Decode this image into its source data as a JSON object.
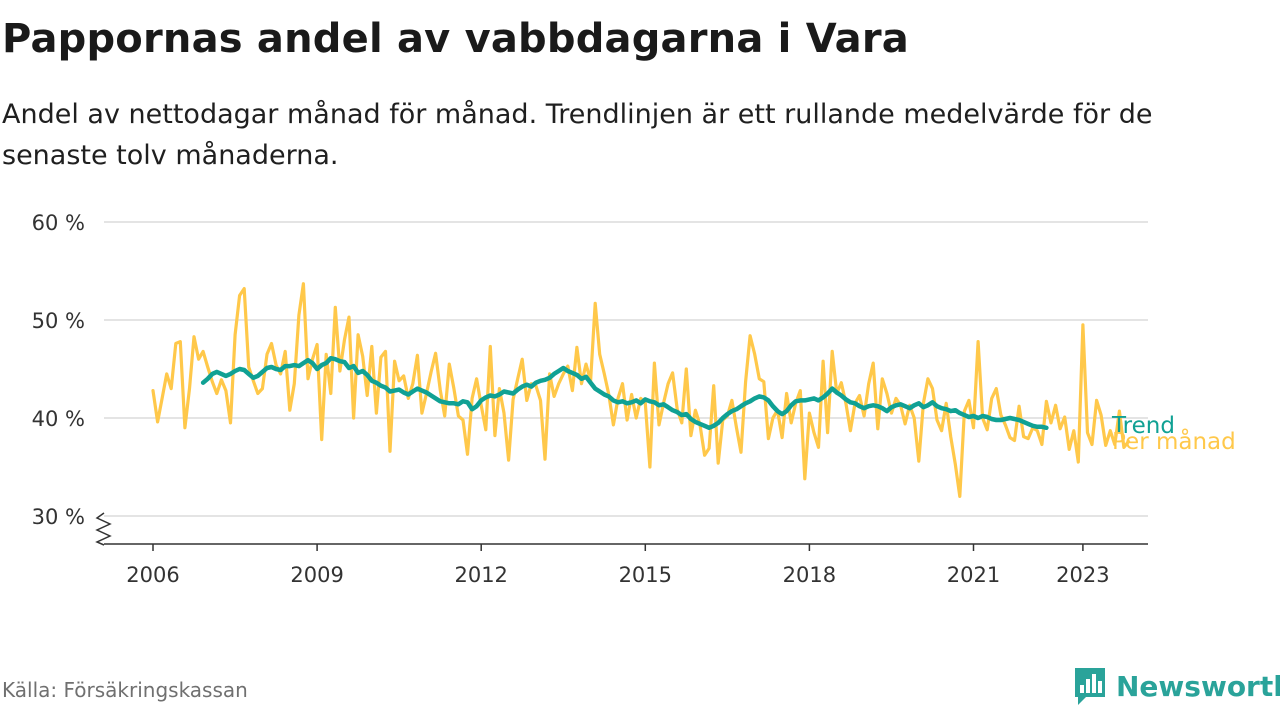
{
  "title": "Pappornas andel av vabbdagarna i Vara",
  "subtitle": "Andel av nettodagar månad för månad. Trendlinjen är ett rullande medelvärde för de senaste tolv månaderna.",
  "source": "Källa: Försäkringskassan",
  "brand": "Newsworthy",
  "chart_data": {
    "type": "line",
    "y_unit": "%",
    "ylim": [
      30,
      60
    ],
    "yticks": [
      30,
      40,
      50,
      60
    ],
    "ytick_labels": [
      "30 %",
      "40 %",
      "50 %",
      "60 %"
    ],
    "xticks": [
      2006,
      2009,
      2012,
      2015,
      2018,
      2021,
      2023
    ],
    "grid": true,
    "legend": "inline-right",
    "colors": {
      "monthly": "#ffc84a",
      "trend": "#10a194",
      "grid": "#dcdcdc",
      "axis": "#333333"
    },
    "monthly_start": "2006-01",
    "trend_start": "2006-12",
    "series": [
      {
        "name": "Per månad",
        "values": [
          42.8,
          39.6,
          42.0,
          44.5,
          43.0,
          47.6,
          47.8,
          39.0,
          43.0,
          48.3,
          46.0,
          46.8,
          45.2,
          43.7,
          42.5,
          43.9,
          42.8,
          39.5,
          48.5,
          52.5,
          53.2,
          45.2,
          43.8,
          42.5,
          43.0,
          46.5,
          47.6,
          45.4,
          44.5,
          46.8,
          40.8,
          43.5,
          50.5,
          53.7,
          44.0,
          46.0,
          47.5,
          37.8,
          46.5,
          42.5,
          51.3,
          44.8,
          48.0,
          50.3,
          40.0,
          48.5,
          46.3,
          42.3,
          47.3,
          40.5,
          46.2,
          46.8,
          36.6,
          45.8,
          43.8,
          44.3,
          42.0,
          43.5,
          46.4,
          40.5,
          42.5,
          44.7,
          46.6,
          42.9,
          40.2,
          45.5,
          43.0,
          40.2,
          39.8,
          36.3,
          42.0,
          44.0,
          41.3,
          38.8,
          47.3,
          38.2,
          43.0,
          40.5,
          35.7,
          41.9,
          44.0,
          46.0,
          41.8,
          43.5,
          43.3,
          41.8,
          35.8,
          44.5,
          42.2,
          43.5,
          44.5,
          45.3,
          42.8,
          47.2,
          43.5,
          45.5,
          43.8,
          51.7,
          46.5,
          44.5,
          42.4,
          39.3,
          42.0,
          43.5,
          39.8,
          42.4,
          40.0,
          42.0,
          41.5,
          35.0,
          45.6,
          39.3,
          41.5,
          43.5,
          44.6,
          40.9,
          39.5,
          45.0,
          38.2,
          40.8,
          39.3,
          36.2,
          36.9,
          43.3,
          35.4,
          39.8,
          40.2,
          41.8,
          39.0,
          36.5,
          43.7,
          48.4,
          46.5,
          44.0,
          43.7,
          37.9,
          40.0,
          40.8,
          38.0,
          42.5,
          39.5,
          41.5,
          42.8,
          33.8,
          40.5,
          38.5,
          37.0,
          45.8,
          38.5,
          46.8,
          42.5,
          43.6,
          41.5,
          38.7,
          41.5,
          42.3,
          40.2,
          43.5,
          45.6,
          38.9,
          44.0,
          42.5,
          40.5,
          42.0,
          41.3,
          39.4,
          41.3,
          40.0,
          35.6,
          41.5,
          44.0,
          43.0,
          39.8,
          38.7,
          41.5,
          38.1,
          35.3,
          32.0,
          40.7,
          41.8,
          39.0,
          47.8,
          40.0,
          38.8,
          42.0,
          43.0,
          40.3,
          39.3,
          38.0,
          37.7,
          41.2,
          38.1,
          37.9,
          39.0,
          38.7,
          37.3,
          41.7,
          39.5,
          41.3,
          38.9,
          40.1,
          36.8,
          38.7,
          35.5,
          49.5,
          38.5,
          37.3,
          41.8,
          40.3,
          37.2,
          38.7,
          37.3,
          40.7,
          37.0,
          37.6
        ]
      },
      {
        "name": "Trend",
        "values": [
          43.6,
          44.0,
          44.5,
          44.7,
          44.5,
          44.3,
          44.5,
          44.8,
          45.0,
          44.9,
          44.5,
          44.1,
          44.3,
          44.7,
          45.1,
          45.2,
          45.0,
          44.9,
          45.3,
          45.3,
          45.4,
          45.3,
          45.6,
          45.9,
          45.6,
          45.0,
          45.4,
          45.6,
          46.1,
          46.0,
          45.8,
          45.7,
          45.1,
          45.3,
          44.6,
          44.8,
          44.4,
          43.8,
          43.6,
          43.3,
          43.1,
          42.7,
          42.8,
          42.9,
          42.6,
          42.4,
          42.7,
          43.0,
          42.8,
          42.6,
          42.3,
          42.0,
          41.7,
          41.6,
          41.5,
          41.5,
          41.4,
          41.7,
          41.6,
          40.9,
          41.2,
          41.8,
          42.1,
          42.3,
          42.2,
          42.4,
          42.7,
          42.6,
          42.5,
          42.9,
          43.2,
          43.4,
          43.2,
          43.6,
          43.8,
          43.9,
          44.1,
          44.5,
          44.8,
          45.1,
          44.8,
          44.6,
          44.4,
          44.0,
          44.2,
          43.6,
          43.0,
          42.7,
          42.4,
          42.2,
          41.8,
          41.6,
          41.7,
          41.5,
          41.6,
          41.8,
          41.5,
          41.9,
          41.7,
          41.6,
          41.3,
          41.4,
          41.1,
          40.8,
          40.6,
          40.3,
          40.4,
          39.9,
          39.6,
          39.4,
          39.2,
          39.0,
          39.2,
          39.5,
          40.0,
          40.4,
          40.7,
          40.9,
          41.2,
          41.5,
          41.7,
          42.0,
          42.2,
          42.1,
          41.8,
          41.2,
          40.7,
          40.4,
          40.7,
          41.3,
          41.7,
          41.8,
          41.8,
          41.9,
          42.0,
          41.8,
          42.1,
          42.5,
          43.0,
          42.6,
          42.3,
          41.9,
          41.6,
          41.5,
          41.2,
          41.0,
          41.2,
          41.3,
          41.2,
          41.0,
          40.7,
          41.1,
          41.3,
          41.4,
          41.2,
          41.0,
          41.3,
          41.5,
          41.1,
          41.3,
          41.6,
          41.2,
          41.0,
          40.9,
          40.7,
          40.8,
          40.5,
          40.3,
          40.1,
          40.2,
          40.0,
          40.2,
          40.1,
          39.9,
          39.8,
          39.8,
          39.9,
          40.0,
          39.9,
          39.8,
          39.6,
          39.4,
          39.2,
          39.1,
          39.1,
          39.0
        ]
      }
    ]
  }
}
